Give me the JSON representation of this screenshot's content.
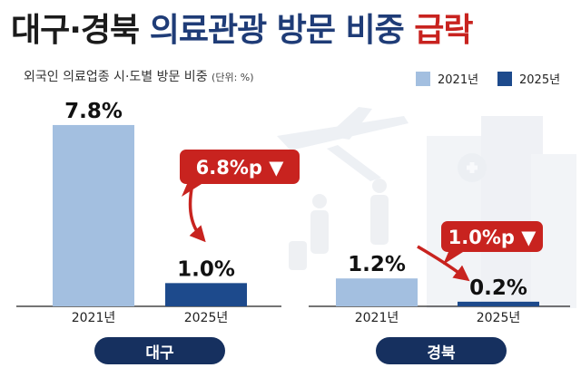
{
  "title": {
    "part1": "대구·경북",
    "part2": "의료관광 방문 비중",
    "part3": "급락"
  },
  "subtitle": {
    "text": "외국인 의료업종 시·도별 방문 비중",
    "unit": "(단위: %)"
  },
  "legend": [
    {
      "label": "2021년",
      "color": "#a3bfe0"
    },
    {
      "label": "2025년",
      "color": "#1d4a8c"
    }
  ],
  "colors": {
    "accent_red": "#c8231f",
    "pill_navy": "#16305f",
    "bar_light": "#a3bfe0",
    "bar_dark": "#1d4a8c"
  },
  "chart_data": [
    {
      "type": "bar",
      "region": "대구",
      "categories": [
        "2021년",
        "2025년"
      ],
      "values": [
        7.8,
        1.0
      ],
      "value_labels": [
        "7.8%",
        "1.0%"
      ],
      "change_label": "6.8%p ▼",
      "ylim": [
        0,
        8.5
      ],
      "grid": false
    },
    {
      "type": "bar",
      "region": "경북",
      "categories": [
        "2021년",
        "2025년"
      ],
      "values": [
        1.2,
        0.2
      ],
      "value_labels": [
        "1.2%",
        "0.2%"
      ],
      "change_label": "1.0%p ▼",
      "ylim": [
        0,
        8.5
      ],
      "grid": false
    }
  ]
}
